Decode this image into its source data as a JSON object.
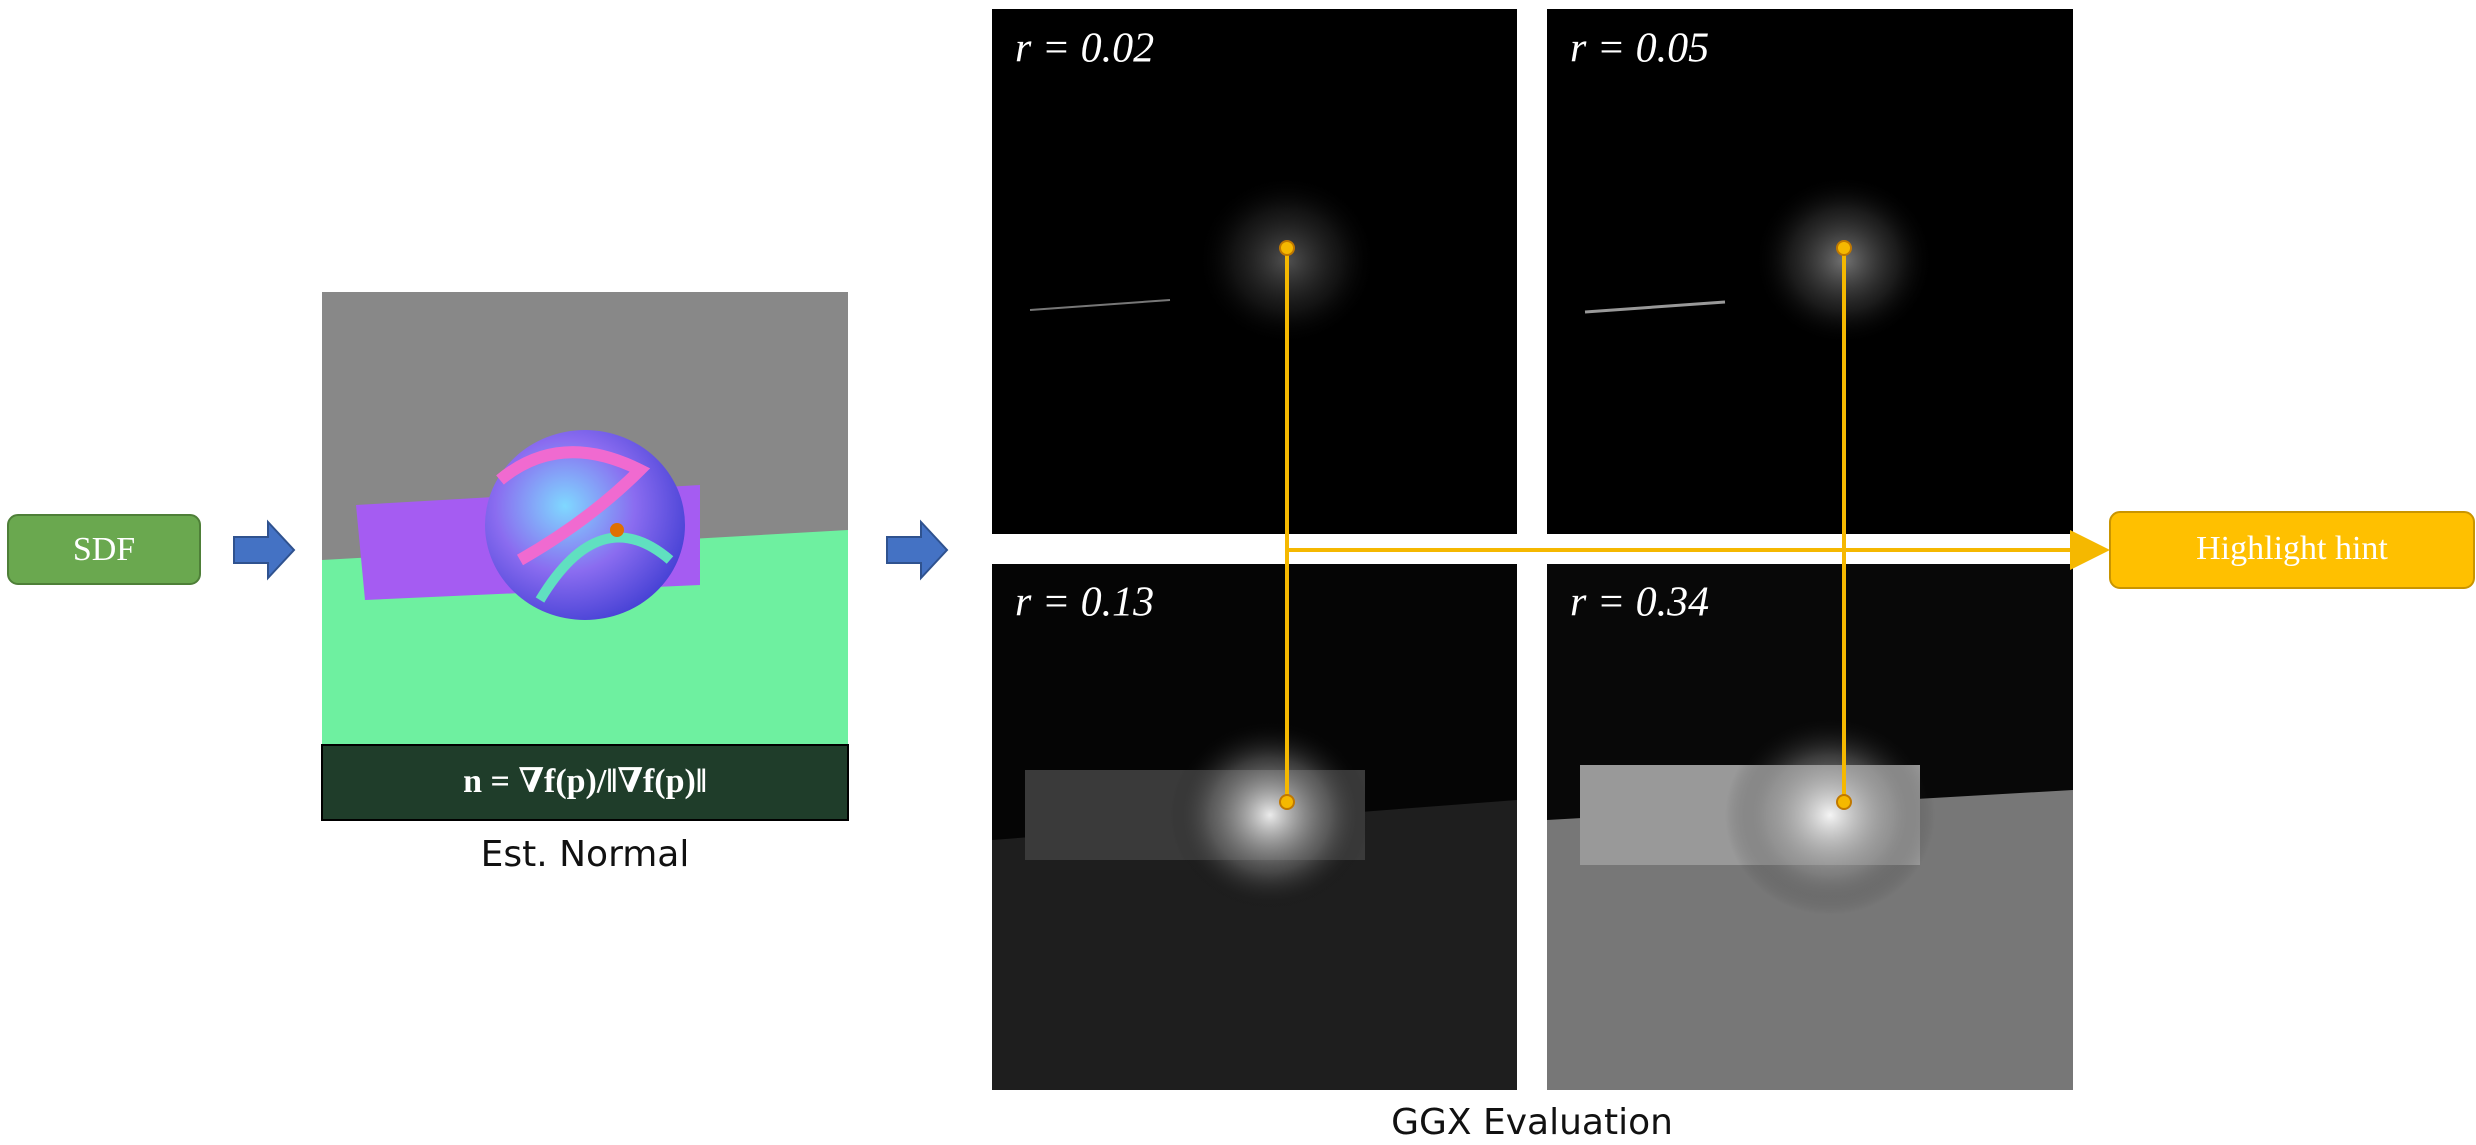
{
  "input_box": {
    "label": "SDF"
  },
  "normal": {
    "formula": "n = ∇f(p)/‖∇f(p)‖",
    "caption": "Est. Normal"
  },
  "panels": [
    {
      "label": "r = 0.02"
    },
    {
      "label": "r = 0.05"
    },
    {
      "label": "r = 0.13"
    },
    {
      "label": "r = 0.34"
    }
  ],
  "panels_caption": "GGX Evaluation",
  "output_box": {
    "label": "Highlight hint"
  }
}
